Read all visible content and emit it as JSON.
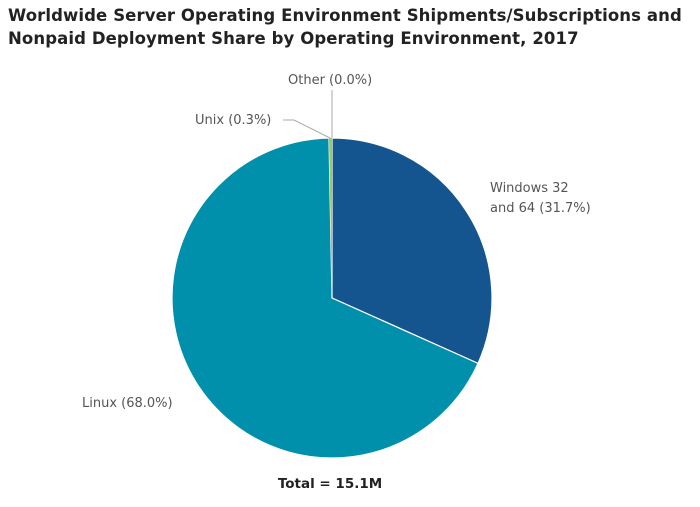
{
  "chart_data": {
    "type": "pie",
    "title_lines": [
      "Worldwide Server Operating Environment Shipments/Subscriptions and",
      "Nonpaid Deployment Share by Operating Environment, 2017"
    ],
    "slices": [
      {
        "label": "Windows 32",
        "label2": "and 64 (31.7%)",
        "value": 31.7,
        "color": "#15558f"
      },
      {
        "label": "Linux (68.0%)",
        "value": 68.0,
        "color": "#0090ab"
      },
      {
        "label": "Unix (0.3%)",
        "value": 0.3,
        "color": "#9ccb5a"
      },
      {
        "label": "Other (0.0%)",
        "value": 0.0,
        "color": "#6fb0c8"
      }
    ],
    "total_label": "Total = 15.1M",
    "legend": "none"
  }
}
